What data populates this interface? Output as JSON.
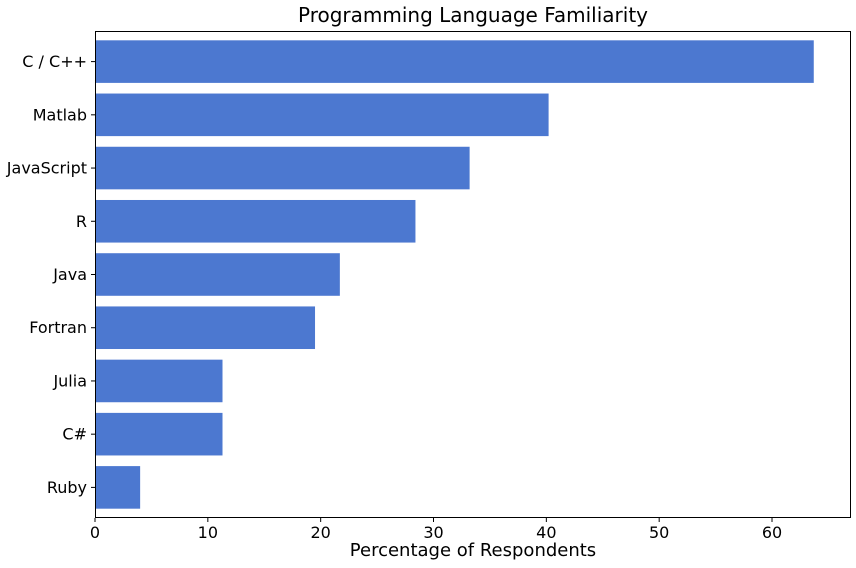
{
  "chart_data": {
    "type": "bar",
    "orientation": "horizontal",
    "title": "Programming Language Familiarity",
    "xlabel": "Percentage of Respondents",
    "ylabel": "",
    "categories": [
      "C / C++",
      "Matlab",
      "JavaScript",
      "R",
      "Java",
      "Fortran",
      "Julia",
      "C#",
      "Ruby"
    ],
    "values": [
      63.7,
      40.2,
      33.2,
      28.4,
      21.7,
      19.5,
      11.3,
      11.3,
      4.0
    ],
    "xlim": [
      0,
      67.0
    ],
    "xticks": [
      0,
      10,
      20,
      30,
      40,
      50,
      60
    ],
    "bar_color": "#4c78d0",
    "grid": false,
    "legend": "none"
  }
}
